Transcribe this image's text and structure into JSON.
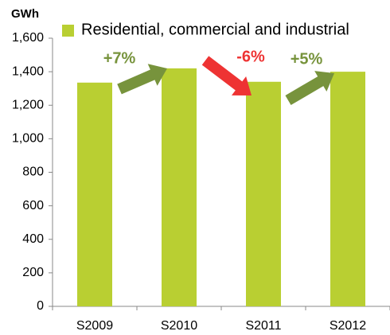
{
  "chart_data": {
    "type": "bar",
    "y_axis_label": "GWh",
    "legend": "Residential, commercial and industrial",
    "categories": [
      "S2009",
      "S2010",
      "S2011",
      "S2012"
    ],
    "values": [
      1335,
      1420,
      1340,
      1400
    ],
    "color": "#b9cf32",
    "ylim": [
      0,
      1600
    ],
    "yticks": [
      0,
      200,
      400,
      600,
      800,
      {
        "value": 1000,
        "label": "1,000"
      },
      {
        "value": 1200,
        "label": "1,200"
      },
      {
        "value": 1400,
        "label": "1,400"
      },
      {
        "value": 1600,
        "label": "1,600"
      }
    ],
    "annotations": [
      {
        "text": "+7%",
        "color": "#77933c"
      },
      {
        "text": "-6%",
        "color": "#ee3333"
      },
      {
        "text": "+5%",
        "color": "#77933c"
      }
    ]
  }
}
